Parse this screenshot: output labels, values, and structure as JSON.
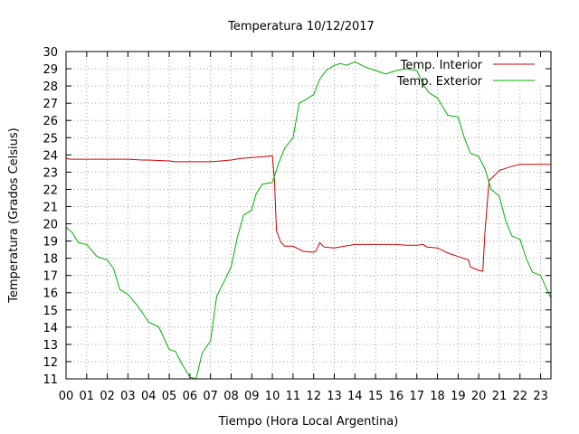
{
  "chart_data": {
    "type": "line",
    "title": "Temperatura 10/12/2017",
    "xlabel": "Tiempo (Hora Local Argentina)",
    "ylabel": "Temperatura (Grados Celsius)",
    "xlim": [
      0,
      23.5
    ],
    "ylim": [
      11,
      30
    ],
    "x_ticks": [
      {
        "v": 0,
        "label": "00"
      },
      {
        "v": 1,
        "label": "01"
      },
      {
        "v": 2,
        "label": "02"
      },
      {
        "v": 3,
        "label": "03"
      },
      {
        "v": 4,
        "label": "04"
      },
      {
        "v": 5,
        "label": "05"
      },
      {
        "v": 6,
        "label": "06"
      },
      {
        "v": 7,
        "label": "07"
      },
      {
        "v": 8,
        "label": "08"
      },
      {
        "v": 9,
        "label": "09"
      },
      {
        "v": 10,
        "label": "10"
      },
      {
        "v": 11,
        "label": "11"
      },
      {
        "v": 12,
        "label": "12"
      },
      {
        "v": 13,
        "label": "13"
      },
      {
        "v": 14,
        "label": "14"
      },
      {
        "v": 15,
        "label": "15"
      },
      {
        "v": 16,
        "label": "16"
      },
      {
        "v": 17,
        "label": "17"
      },
      {
        "v": 18,
        "label": "18"
      },
      {
        "v": 19,
        "label": "19"
      },
      {
        "v": 20,
        "label": "20"
      },
      {
        "v": 21,
        "label": "21"
      },
      {
        "v": 22,
        "label": "22"
      },
      {
        "v": 23,
        "label": "23"
      }
    ],
    "y_ticks": [
      11,
      12,
      13,
      14,
      15,
      16,
      17,
      18,
      19,
      20,
      21,
      22,
      23,
      24,
      25,
      26,
      27,
      28,
      29,
      30
    ],
    "grid": true,
    "legend_position": "top-right",
    "series": [
      {
        "name": "Temp. Interior",
        "color": "#cc0000",
        "x": [
          0,
          0.2,
          1,
          2,
          3,
          3.7,
          4,
          5,
          5.3,
          6,
          7,
          7.5,
          8,
          8.5,
          9,
          9.6,
          10.0,
          10.1,
          10.2,
          10.4,
          10.6,
          11,
          11.5,
          12.0,
          12.1,
          12.3,
          12.5,
          13,
          13.5,
          14,
          15,
          16,
          16.5,
          17,
          17.3,
          17.5,
          18,
          18.5,
          19,
          19.5,
          19.6,
          20,
          20.2,
          20.3,
          20.5,
          21,
          21.5,
          22,
          22.5,
          23,
          23.5
        ],
        "y": [
          23.8,
          23.75,
          23.75,
          23.75,
          23.75,
          23.7,
          23.7,
          23.65,
          23.6,
          23.6,
          23.6,
          23.65,
          23.7,
          23.8,
          23.85,
          23.9,
          23.95,
          22.5,
          19.6,
          18.95,
          18.7,
          18.7,
          18.4,
          18.35,
          18.4,
          18.9,
          18.65,
          18.6,
          18.7,
          18.8,
          18.8,
          18.8,
          18.75,
          18.75,
          18.8,
          18.65,
          18.6,
          18.3,
          18.1,
          17.9,
          17.5,
          17.3,
          17.25,
          19.5,
          22.5,
          23.1,
          23.3,
          23.45,
          23.45,
          23.45,
          23.45
        ]
      },
      {
        "name": "Temp. Exterior",
        "color": "#00b000",
        "x": [
          0,
          0.3,
          0.6,
          1,
          1.5,
          2,
          2.3,
          2.6,
          3,
          3.5,
          4,
          4.5,
          5,
          5.3,
          5.6,
          6,
          6.3,
          6.6,
          7,
          7.3,
          7.6,
          8,
          8.3,
          8.6,
          9,
          9.2,
          9.5,
          10,
          10.3,
          10.6,
          11,
          11.3,
          11.6,
          12,
          12.3,
          12.6,
          13,
          13.3,
          13.6,
          14,
          14.5,
          15,
          15.5,
          16,
          16.5,
          17,
          17.3,
          17.6,
          18,
          18.5,
          19,
          19.3,
          19.6,
          20,
          20.3,
          20.6,
          21,
          21.3,
          21.6,
          22,
          22.3,
          22.6,
          23,
          23.3,
          23.5
        ],
        "y": [
          19.8,
          19.5,
          18.9,
          18.8,
          18.1,
          17.9,
          17.4,
          16.2,
          15.9,
          15.2,
          14.3,
          14.0,
          12.7,
          12.6,
          11.9,
          11.1,
          11.0,
          12.5,
          13.2,
          15.8,
          16.5,
          17.5,
          19.2,
          20.5,
          20.8,
          21.7,
          22.3,
          22.4,
          23.5,
          24.4,
          25.0,
          27.0,
          27.2,
          27.5,
          28.4,
          28.9,
          29.2,
          29.3,
          29.2,
          29.4,
          29.1,
          28.9,
          28.7,
          28.9,
          29.0,
          28.9,
          28.1,
          27.6,
          27.3,
          26.3,
          26.2,
          25.0,
          24.1,
          23.9,
          23.2,
          22.0,
          21.6,
          20.2,
          19.3,
          19.1,
          18.0,
          17.2,
          17.0,
          16.2,
          15.7
        ]
      }
    ]
  }
}
